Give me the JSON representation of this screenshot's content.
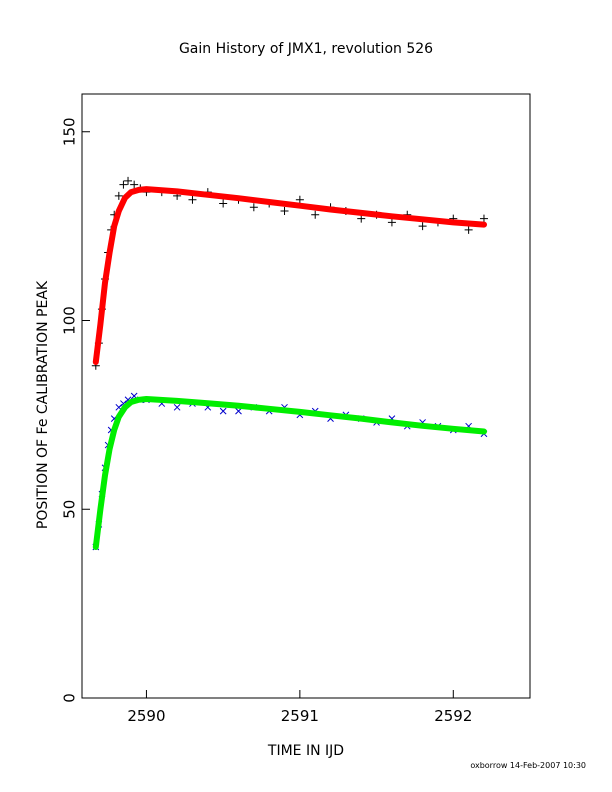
{
  "chart_data": {
    "type": "scatter",
    "title": "Gain History of JMX1, revolution 526",
    "xlabel": "TIME IN IJD",
    "ylabel": "POSITION OF Fe CALIBRATION PEAK",
    "xlim": [
      2589.58,
      2592.5
    ],
    "ylim": [
      0,
      160
    ],
    "xticks": [
      2590,
      2591,
      2592
    ],
    "yticks": [
      0,
      50,
      100,
      150
    ],
    "grid": false,
    "footer": "oxborrow 14-Feb-2007 10:30",
    "series": [
      {
        "marker": "plus",
        "color": "#000000",
        "x": [
          2589.67,
          2589.69,
          2589.71,
          2589.73,
          2589.75,
          2589.77,
          2589.79,
          2589.82,
          2589.85,
          2589.88,
          2589.92,
          2589.96,
          2590.0,
          2590.1,
          2590.2,
          2590.3,
          2590.4,
          2590.5,
          2590.6,
          2590.7,
          2590.8,
          2590.9,
          2591.0,
          2591.1,
          2591.2,
          2591.3,
          2591.4,
          2591.5,
          2591.6,
          2591.7,
          2591.8,
          2591.9,
          2592.0,
          2592.1,
          2592.2
        ],
        "y": [
          88,
          94,
          103,
          111,
          118,
          124,
          128,
          133,
          136,
          137,
          136,
          135,
          134,
          134,
          133,
          132,
          134,
          131,
          132,
          130,
          131,
          129,
          132,
          128,
          130,
          129,
          127,
          128,
          126,
          128,
          125,
          126,
          127,
          124,
          127
        ]
      },
      {
        "marker": "x",
        "color": "#0000cc",
        "x": [
          2589.67,
          2589.69,
          2589.71,
          2589.73,
          2589.75,
          2589.77,
          2589.79,
          2589.82,
          2589.85,
          2589.88,
          2589.92,
          2589.96,
          2590.0,
          2590.1,
          2590.2,
          2590.3,
          2590.4,
          2590.5,
          2590.6,
          2590.7,
          2590.8,
          2590.9,
          2591.0,
          2591.1,
          2591.2,
          2591.3,
          2591.4,
          2591.5,
          2591.6,
          2591.7,
          2591.8,
          2591.9,
          2592.0,
          2592.1,
          2592.2
        ],
        "y": [
          40,
          46,
          54,
          61,
          67,
          71,
          74,
          77,
          78,
          79,
          80,
          79,
          79,
          78,
          77,
          78,
          77,
          76,
          76,
          77,
          76,
          77,
          75,
          76,
          74,
          75,
          74,
          73,
          74,
          72,
          73,
          72,
          71,
          72,
          70
        ]
      },
      {
        "marker": "line",
        "color": "#ff0000",
        "x": [
          2589.67,
          2589.7,
          2589.73,
          2589.76,
          2589.79,
          2589.82,
          2589.86,
          2589.9,
          2589.95,
          2590.0,
          2590.2,
          2590.4,
          2590.6,
          2590.8,
          2591.0,
          2591.2,
          2591.4,
          2591.6,
          2591.8,
          2592.0,
          2592.2
        ],
        "y": [
          89,
          99,
          110,
          118,
          125,
          129,
          132.5,
          134,
          134.6,
          134.8,
          134.2,
          133.3,
          132.4,
          131.4,
          130.4,
          129.4,
          128.5,
          127.6,
          126.8,
          126,
          125.4
        ]
      },
      {
        "marker": "line",
        "color": "#00ee00",
        "x": [
          2589.67,
          2589.7,
          2589.73,
          2589.76,
          2589.79,
          2589.82,
          2589.86,
          2589.9,
          2589.95,
          2590.0,
          2590.2,
          2590.4,
          2590.6,
          2590.8,
          2591.0,
          2591.2,
          2591.4,
          2591.6,
          2591.8,
          2592.0,
          2592.2
        ],
        "y": [
          40,
          50,
          59,
          66,
          71,
          74.5,
          77,
          78.4,
          79,
          79.2,
          78.7,
          78.1,
          77.4,
          76.6,
          75.8,
          74.9,
          74,
          73,
          72.1,
          71.3,
          70.6
        ]
      }
    ]
  }
}
